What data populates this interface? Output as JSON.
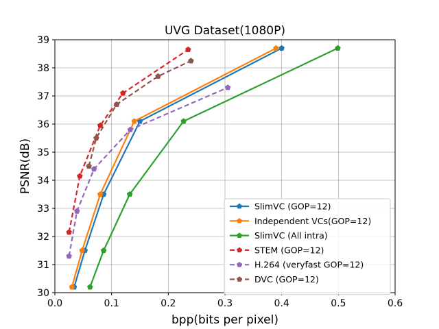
{
  "chart_data": {
    "type": "line",
    "title": "UVG Dataset(1080P)",
    "xlabel": "bpp(bits per pixel)",
    "ylabel": "PSNR(dB)",
    "xlim": [
      0.0,
      0.6
    ],
    "ylim": [
      30,
      39
    ],
    "xticks": [
      "0.0",
      "0.1",
      "0.2",
      "0.3",
      "0.4",
      "0.5",
      "0.6"
    ],
    "yticks": [
      "30",
      "31",
      "32",
      "33",
      "34",
      "35",
      "36",
      "37",
      "38",
      "39"
    ],
    "grid": true,
    "legend_position": "lower-right",
    "series": [
      {
        "name": "SlimVC (GOP=12)",
        "color": "#1f77b4",
        "x": [
          0.034,
          0.053,
          0.086,
          0.15,
          0.4
        ],
        "y": [
          30.2,
          31.5,
          33.5,
          36.1,
          38.7
        ]
      },
      {
        "name": "Independent VCs(GOP=12)",
        "color": "#ff7f0e",
        "x": [
          0.03,
          0.048,
          0.08,
          0.14,
          0.39
        ],
        "y": [
          30.2,
          31.5,
          33.5,
          36.1,
          38.7
        ]
      },
      {
        "name": "SlimVC (All intra)",
        "color": "#2ca02c",
        "x": [
          0.062,
          0.086,
          0.132,
          0.227,
          0.499
        ],
        "y": [
          30.2,
          31.5,
          33.5,
          36.1,
          38.7
        ]
      },
      {
        "name": "STEM (GOP=12)",
        "color": "#d62728",
        "x": [
          0.025,
          0.044,
          0.08,
          0.12,
          0.235
        ],
        "y": [
          32.15,
          34.15,
          35.95,
          37.1,
          38.65
        ]
      },
      {
        "name": "H.264 (veryfast GOP=12)",
        "color": "#9467bd",
        "x": [
          0.025,
          0.039,
          0.069,
          0.133,
          0.305
        ],
        "y": [
          31.3,
          32.9,
          34.4,
          35.8,
          37.3
        ]
      },
      {
        "name": "DVC (GOP=12)",
        "color": "#8c564b",
        "x": [
          0.06,
          0.073,
          0.109,
          0.182,
          0.24
        ],
        "y": [
          34.5,
          35.5,
          36.7,
          37.7,
          38.25
        ]
      }
    ]
  }
}
